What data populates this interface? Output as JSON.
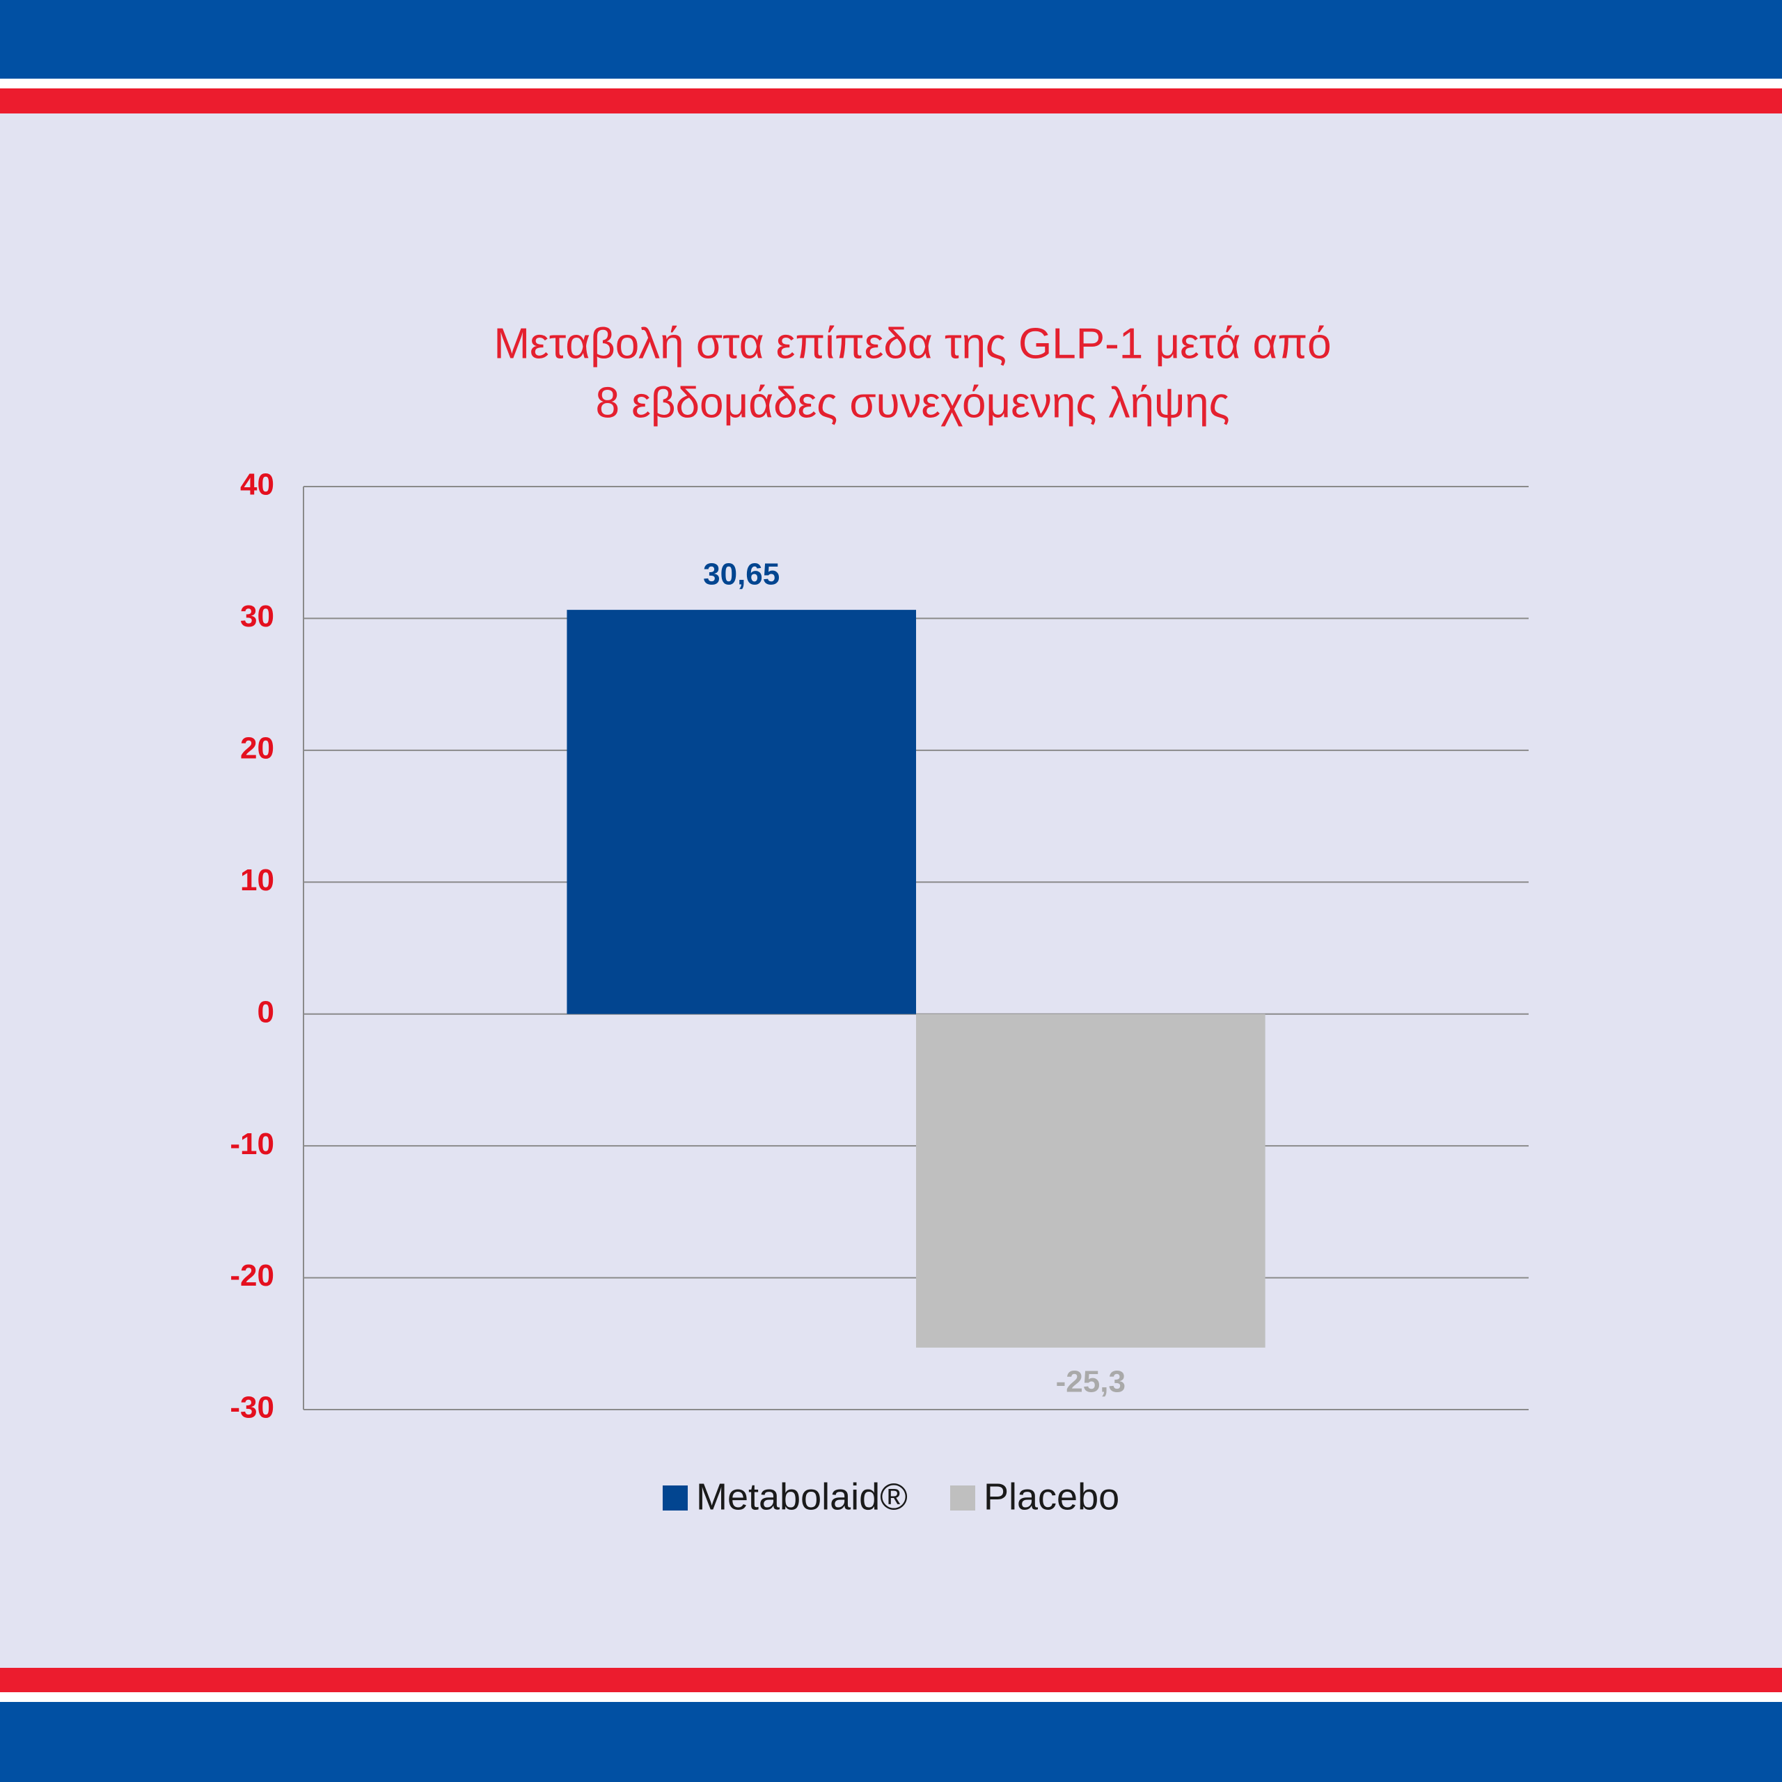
{
  "chart_data": {
    "type": "bar",
    "title": [
      "Μεταβολή στα επίπεδα της GLP-1 μετά από",
      "8 εβδομάδες συνεχόμενης λήψης"
    ],
    "categories": [
      null
    ],
    "series": [
      {
        "name": "Metabolaid®",
        "color": "#024590",
        "values": [
          30.65
        ],
        "value_labels": [
          "30,65"
        ]
      },
      {
        "name": "Placebo",
        "color": "#bfbfbf",
        "values": [
          -25.3
        ],
        "value_labels": [
          "-25,3"
        ]
      }
    ],
    "ylim": [
      -30,
      40
    ],
    "yticks": [
      -30,
      -20,
      -10,
      0,
      10,
      20,
      30,
      40
    ],
    "grid": true,
    "legend": "bottom"
  }
}
